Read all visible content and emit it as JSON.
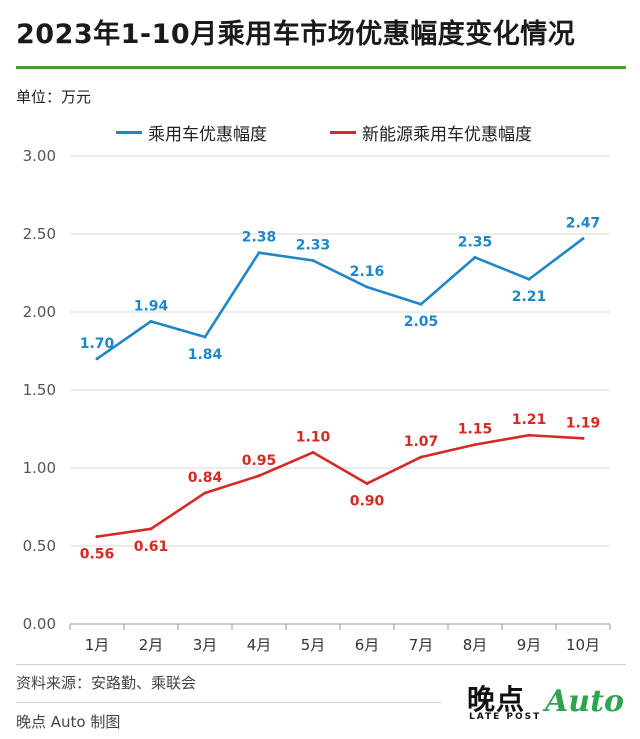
{
  "header": {
    "title": "2023年1-10月乘用车市场优惠幅度变化情况",
    "unit": "单位：万元"
  },
  "colors": {
    "series1": "#1f86c8",
    "series2": "#d42a23",
    "accent": "#4a9a3f",
    "grid": "#d9d9d9"
  },
  "chart_data": {
    "type": "line",
    "categories": [
      "1月",
      "2月",
      "3月",
      "4月",
      "5月",
      "6月",
      "7月",
      "8月",
      "9月",
      "10月"
    ],
    "series": [
      {
        "name": "乘用车优惠幅度",
        "values": [
          1.7,
          1.94,
          1.84,
          2.38,
          2.33,
          2.16,
          2.05,
          2.35,
          2.21,
          2.47
        ]
      },
      {
        "name": "新能源乘用车优惠幅度",
        "values": [
          0.56,
          0.61,
          0.84,
          0.95,
          1.1,
          0.9,
          1.07,
          1.15,
          1.21,
          1.19
        ]
      }
    ],
    "yticks": [
      "0.00",
      "0.50",
      "1.00",
      "1.50",
      "2.00",
      "2.50",
      "3.00"
    ],
    "ylim": [
      0,
      3
    ],
    "grid": true,
    "legend_position": "top"
  },
  "footer": {
    "source": "资料来源：安路勤、乘联会",
    "credit": "晚点 Auto 制图",
    "logo_main": "晚点",
    "logo_sub": "LATE POST",
    "logo_auto": "Auto"
  }
}
